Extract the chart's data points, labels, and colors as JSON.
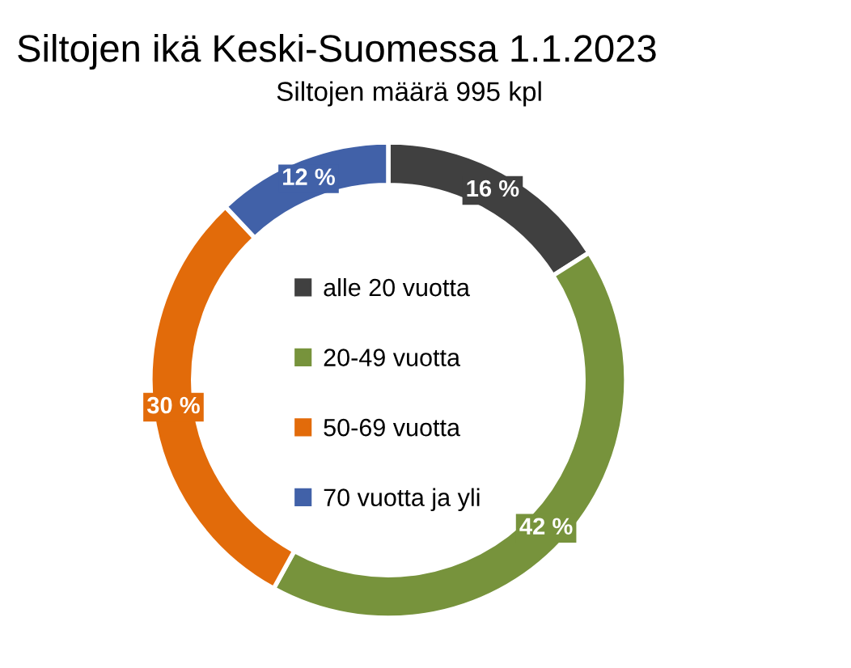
{
  "chart_data": {
    "type": "donut",
    "title": "Siltojen ikä Keski-Suomessa 1.1.2023",
    "subtitle": "Siltojen määrä 995 kpl",
    "categories": [
      "alle 20 vuotta",
      "20-49 vuotta",
      "50-69 vuotta",
      "70 vuotta ja yli"
    ],
    "values": [
      16,
      42,
      30,
      12
    ],
    "colors": [
      "#404040",
      "#77933c",
      "#e26b0a",
      "#4161a8"
    ],
    "value_labels": [
      "16 %",
      "42 %",
      "30 %",
      "12 %"
    ],
    "legend": "center"
  }
}
